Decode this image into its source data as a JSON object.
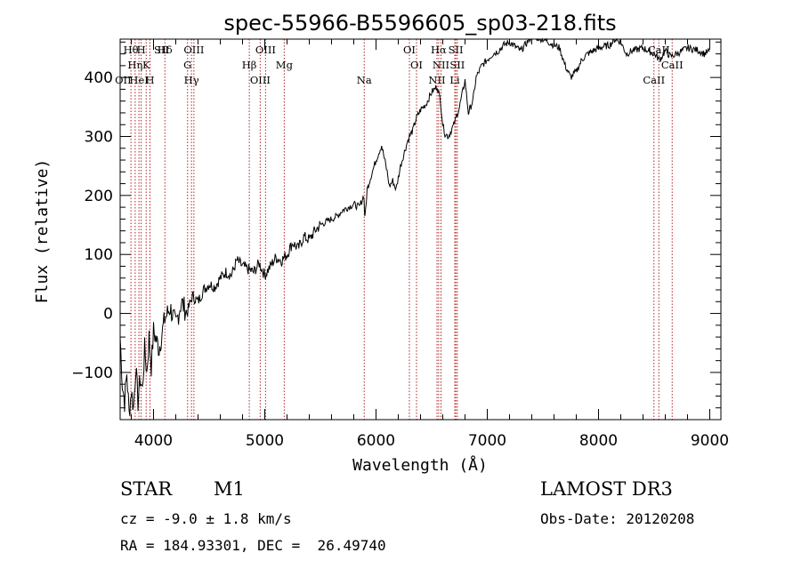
{
  "chart_data": {
    "type": "line",
    "title": "spec-55966-B5596605_sp03-218.fits",
    "xlabel": "Wavelength (Å)",
    "ylabel": "Flux (relative)",
    "xlim": [
      3700,
      9100
    ],
    "ylim": [
      -180,
      465
    ],
    "x_ticks": [
      4000,
      5000,
      6000,
      7000,
      8000,
      9000
    ],
    "y_ticks": [
      -100,
      0,
      100,
      200,
      300,
      400
    ],
    "series": [
      {
        "name": "flux",
        "x": [
          3700,
          3720,
          3740,
          3760,
          3780,
          3800,
          3820,
          3840,
          3860,
          3880,
          3900,
          3920,
          3940,
          3960,
          3980,
          4000,
          4050,
          4100,
          4150,
          4200,
          4250,
          4300,
          4350,
          4400,
          4450,
          4500,
          4550,
          4600,
          4650,
          4700,
          4750,
          4800,
          4850,
          4900,
          4950,
          5000,
          5050,
          5100,
          5150,
          5200,
          5250,
          5300,
          5350,
          5400,
          5450,
          5500,
          5550,
          5600,
          5650,
          5700,
          5750,
          5800,
          5850,
          5870,
          5890,
          5895,
          5900,
          5920,
          5950,
          6000,
          6050,
          6100,
          6120,
          6150,
          6180,
          6200,
          6220,
          6250,
          6280,
          6300,
          6330,
          6360,
          6400,
          6450,
          6500,
          6550,
          6580,
          6600,
          6620,
          6650,
          6700,
          6750,
          6800,
          6830,
          6870,
          6900,
          6950,
          7000,
          7050,
          7100,
          7150,
          7200,
          7300,
          7400,
          7500,
          7600,
          7650,
          7700,
          7750,
          7800,
          7850,
          7900,
          8000,
          8100,
          8150,
          8200,
          8250,
          8300,
          8400,
          8500,
          8550,
          8600,
          8650,
          8700,
          8750,
          8800,
          8850,
          8900,
          8950,
          9000
        ],
        "y": [
          -40,
          -120,
          -150,
          -100,
          -170,
          -130,
          -160,
          -90,
          -150,
          -110,
          -130,
          -60,
          -100,
          -40,
          -90,
          -30,
          -60,
          -10,
          10,
          -20,
          20,
          0,
          30,
          20,
          40,
          50,
          45,
          60,
          70,
          65,
          90,
          80,
          75,
          70,
          85,
          65,
          80,
          95,
          90,
          100,
          120,
          110,
          130,
          125,
          140,
          150,
          155,
          160,
          165,
          175,
          180,
          185,
          180,
          190,
          200,
          180,
          160,
          210,
          230,
          260,
          285,
          240,
          215,
          225,
          210,
          230,
          250,
          270,
          290,
          300,
          310,
          330,
          345,
          355,
          375,
          385,
          360,
          320,
          305,
          300,
          320,
          350,
          395,
          340,
          360,
          400,
          420,
          430,
          440,
          445,
          455,
          460,
          445,
          470,
          465,
          455,
          450,
          420,
          400,
          410,
          430,
          440,
          450,
          455,
          465,
          460,
          440,
          445,
          450,
          440,
          430,
          445,
          435,
          440,
          445,
          450,
          448,
          446,
          440,
          445
        ]
      }
    ],
    "line_markers": [
      {
        "wl": 3797,
        "label": "Hθ"
      },
      {
        "wl": 3835,
        "label": "Hη"
      },
      {
        "wl": 3869,
        "label": "HeI"
      },
      {
        "wl": 3889,
        "label": "H"
      },
      {
        "wl": 3934,
        "label": "K"
      },
      {
        "wl": 3968,
        "label": "H"
      },
      {
        "wl": 4102,
        "label": "Hδ"
      },
      {
        "wl": 4306,
        "label": "G"
      },
      {
        "wl": 4341,
        "label": "Hγ"
      },
      {
        "wl": 4363,
        "label": "OIII"
      },
      {
        "wl": 4861,
        "label": "Hβ"
      },
      {
        "wl": 4959,
        "label": "OIII"
      },
      {
        "wl": 5007,
        "label": "OIII"
      },
      {
        "wl": 5175,
        "label": "Mg"
      },
      {
        "wl": 5894,
        "label": "Na"
      },
      {
        "wl": 6300,
        "label": "OI"
      },
      {
        "wl": 6364,
        "label": "OI"
      },
      {
        "wl": 6548,
        "label": "NII"
      },
      {
        "wl": 6563,
        "label": "Hα"
      },
      {
        "wl": 6584,
        "label": "NII"
      },
      {
        "wl": 6708,
        "label": "Li"
      },
      {
        "wl": 6717,
        "label": "SII"
      },
      {
        "wl": 6731,
        "label": "SII"
      },
      {
        "wl": 8498,
        "label": "CaII"
      },
      {
        "wl": 8542,
        "label": "CaII"
      },
      {
        "wl": 8662,
        "label": "CaII"
      }
    ],
    "extra_labels": [
      {
        "wl": 3727,
        "label": "OII"
      },
      {
        "wl": 4072,
        "label": "SII"
      }
    ]
  },
  "info": {
    "class_label": "STAR",
    "subclass_label": "M1",
    "survey": "LAMOST DR3",
    "redshift": "cz = -9.0 ± 1.8 km/s",
    "obs_date": "Obs-Date: 20120208",
    "coords": "RA = 184.93301, DEC =  26.49740"
  }
}
